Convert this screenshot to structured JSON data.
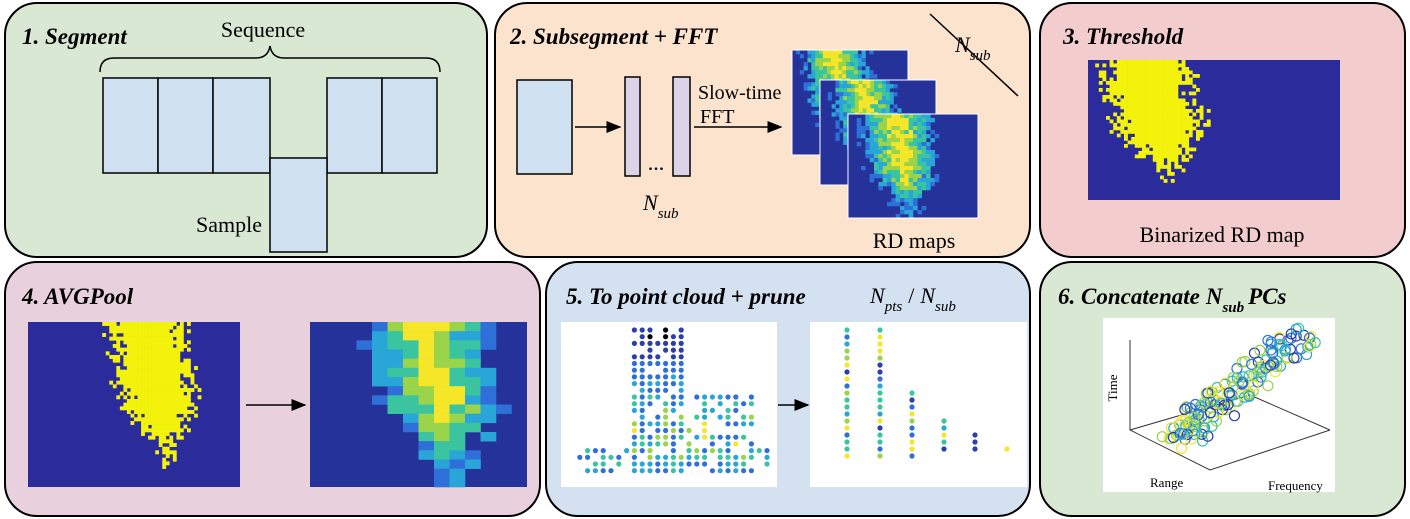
{
  "panels": [
    {
      "title": "1. Segment",
      "sequence_label": "Sequence",
      "sample_label": "Sample"
    },
    {
      "title": "2. Subsegment + FFT",
      "fft_label": [
        "Slow-time",
        "FFT"
      ],
      "ellipsis": "...",
      "n_sub": {
        "base": "N",
        "sub": "sub"
      },
      "stack_label": {
        "base": "N",
        "sub": "sub"
      },
      "caption": "RD maps"
    },
    {
      "title": "3. Threshold",
      "caption": "Binarized RD map"
    },
    {
      "title": "4. AVGPool"
    },
    {
      "title": "5. To point cloud + prune",
      "ratio": {
        "numerator": {
          "base": "N",
          "sub": "pts"
        },
        "separator": "/",
        "denominator": {
          "base": "N",
          "sub": "sub"
        }
      }
    },
    {
      "title": {
        "prefix": "6. Concatenate",
        "base": "N",
        "sub": "sub",
        "suffix": "PCs"
      },
      "axes": {
        "z": "Time",
        "x": "Range",
        "y": "Frequency"
      }
    }
  ]
}
